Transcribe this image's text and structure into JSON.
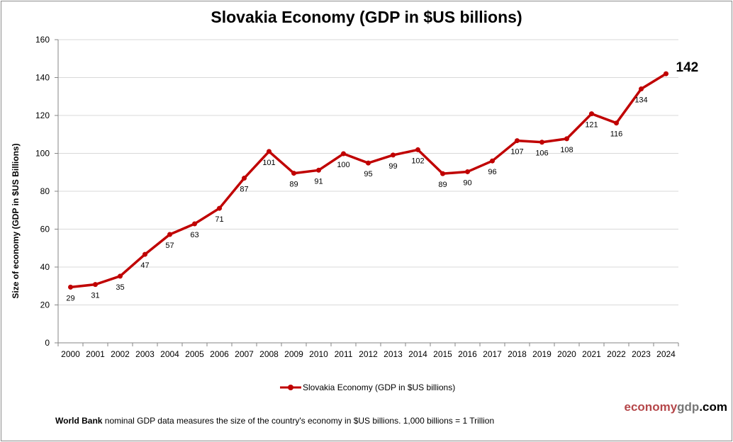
{
  "chart_data": {
    "type": "line",
    "title": "Slovakia Economy (GDP in $US billions)",
    "ylabel": "Size of economy (GDP in $US Billions)",
    "xlabel": "",
    "categories": [
      "2000",
      "2001",
      "2002",
      "2003",
      "2004",
      "2005",
      "2006",
      "2007",
      "2008",
      "2009",
      "2010",
      "2011",
      "2012",
      "2013",
      "2014",
      "2015",
      "2016",
      "2017",
      "2018",
      "2019",
      "2020",
      "2021",
      "2022",
      "2023",
      "2024"
    ],
    "series": [
      {
        "name": "Slovakia Economy (GDP in $US billions)",
        "values": [
          29.4,
          30.8,
          35.2,
          46.7,
          57.2,
          62.8,
          71.0,
          86.9,
          101.0,
          89.5,
          91.1,
          99.8,
          94.9,
          99.1,
          101.9,
          89.3,
          90.3,
          96.0,
          106.7,
          105.9,
          107.7,
          120.9,
          116.0,
          134.0,
          142.0
        ],
        "labels": [
          "29",
          "31",
          "35",
          "47",
          "57",
          "63",
          "71",
          "87",
          "101",
          "89",
          "91",
          "100",
          "95",
          "99",
          "102",
          "89",
          "90",
          "96",
          "107",
          "106",
          "108",
          "121",
          "116",
          "134",
          "142"
        ],
        "color": "#c00000"
      }
    ],
    "ylim": [
      0,
      160
    ],
    "yticks": [
      0,
      20,
      40,
      60,
      80,
      100,
      120,
      140,
      160
    ],
    "grid": true,
    "legend": "bottom"
  },
  "brand": {
    "part1": "economy",
    "part2": "gdp",
    "part3": ".com"
  },
  "footnote": {
    "bold": "World Bank",
    "text": " nominal GDP data  measures the size of the country's economy in $US billions. 1,000 billions = 1 Trillion"
  }
}
